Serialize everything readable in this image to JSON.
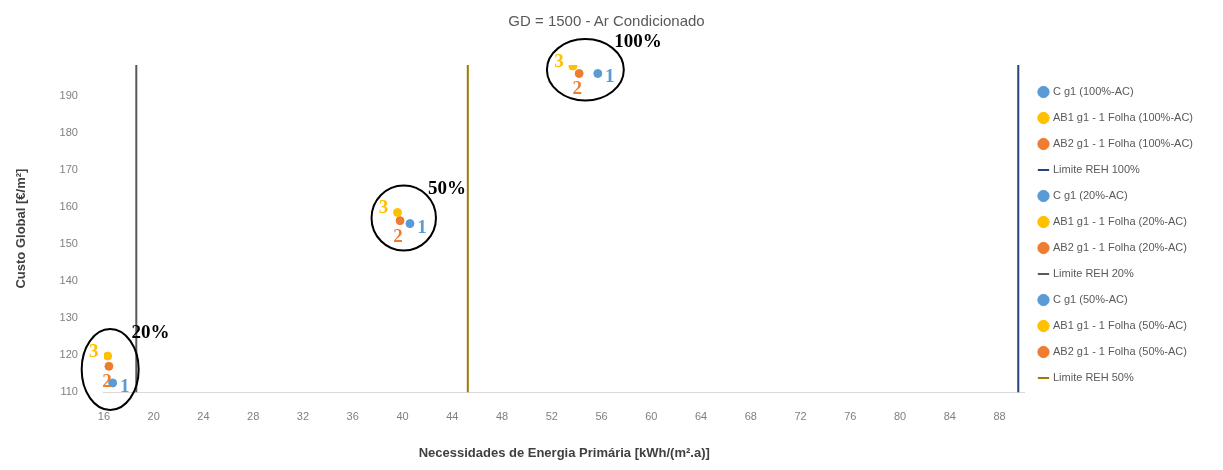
{
  "chart_data": {
    "type": "scatter",
    "title": "GD = 1500 - Ar Condicionado",
    "xlabel": "Necessidades de Energia Primária [kWh/(m².a)]",
    "ylabel": "Custo Global [€/m²]",
    "xlim": [
      16,
      90
    ],
    "xticks": [
      16,
      20,
      24,
      28,
      32,
      36,
      40,
      44,
      48,
      52,
      56,
      60,
      64,
      68,
      72,
      76,
      80,
      84,
      88
    ],
    "ylim": [
      110,
      198.5
    ],
    "yticks": [
      110,
      120,
      130,
      140,
      150,
      160,
      170,
      180,
      190
    ],
    "grid": false,
    "legend": "right",
    "marker": "circle",
    "series": [
      {
        "name": "C g1 (100%-AC)",
        "color": "#5b9bd5",
        "x": [
          55.7
        ],
        "values": [
          196.2
        ]
      },
      {
        "name": "AB1 g1 - 1 Folha (100%-AC)",
        "color": "#ffc000",
        "x": [
          53.7
        ],
        "values": [
          198.2
        ]
      },
      {
        "name": "AB2 g1 - 1 Folha (100%-AC)",
        "color": "#ed7d31",
        "x": [
          54.2
        ],
        "values": [
          196.2
        ]
      },
      {
        "name": "Limite REH 100%",
        "type": "line",
        "marker": "none",
        "color": "#264478",
        "x": [
          89.5,
          89.5
        ],
        "values": [
          110,
          198.5
        ]
      },
      {
        "name": "C g1 (20%-AC)",
        "color": "#5b9bd5",
        "x": [
          16.7
        ],
        "values": [
          112.5
        ]
      },
      {
        "name": "AB1 g1 - 1 Folha (20%-AC)",
        "color": "#ffc000",
        "x": [
          16.3
        ],
        "values": [
          119.8
        ]
      },
      {
        "name": "AB2 g1 - 1 Folha (20%-AC)",
        "color": "#ed7d31",
        "x": [
          16.4
        ],
        "values": [
          117
        ]
      },
      {
        "name": "Limite REH 20%",
        "type": "line",
        "marker": "none",
        "color": "#595959",
        "x": [
          18.6,
          18.6
        ],
        "values": [
          110,
          198.5
        ]
      },
      {
        "name": "C g1 (50%-AC)",
        "color": "#5b9bd5",
        "x": [
          40.6
        ],
        "values": [
          155.6
        ]
      },
      {
        "name": "AB1 g1 - 1 Folha (50%-AC)",
        "color": "#ffc000",
        "x": [
          39.6
        ],
        "values": [
          158.6
        ]
      },
      {
        "name": "AB2 g1 - 1 Folha (50%-AC)",
        "color": "#ed7d31",
        "x": [
          39.8
        ],
        "values": [
          156.4
        ]
      },
      {
        "name": "Limite REH 50%",
        "type": "line",
        "marker": "none",
        "color": "#9e7b00",
        "x": [
          45.25,
          45.25
        ],
        "values": [
          110,
          198.5
        ]
      }
    ],
    "annotations": [
      {
        "text": "1",
        "x": 55.7,
        "y": 196.2
      },
      {
        "text": "3",
        "x": 53.7,
        "y": 198.2
      },
      {
        "text": "2",
        "x": 54.2,
        "y": 196.2
      },
      {
        "text": "1",
        "x": 16.7,
        "y": 112.5
      },
      {
        "text": "3",
        "x": 16.3,
        "y": 119.8
      },
      {
        "text": "2",
        "x": 16.4,
        "y": 117
      },
      {
        "text": "1",
        "x": 40.6,
        "y": 155.6
      },
      {
        "text": "3",
        "x": 39.6,
        "y": 158.6
      },
      {
        "text": "2",
        "x": 39.8,
        "y": 156.4
      },
      "100%",
      "20%",
      "50%"
    ]
  }
}
